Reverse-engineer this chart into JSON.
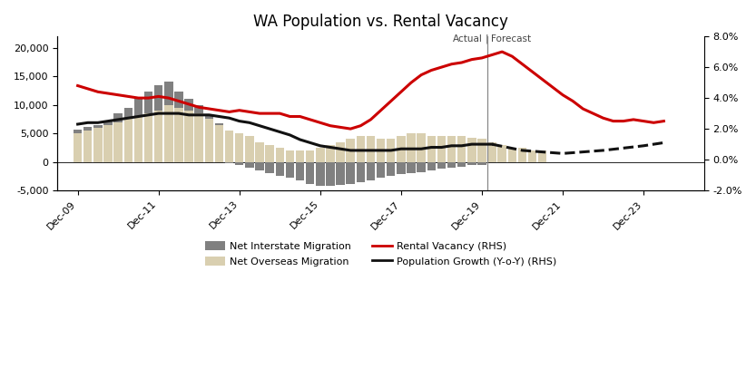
{
  "title": "WA Population vs. Rental Vacancy",
  "x_tick_labels": [
    "Dec-09",
    "Dec-11",
    "Dec-13",
    "Dec-15",
    "Dec-17",
    "Dec-19",
    "Dec-21",
    "Dec-23"
  ],
  "x_tick_positions": [
    0,
    8,
    16,
    24,
    32,
    40,
    48,
    56
  ],
  "xlim": [
    -2,
    62
  ],
  "ylim_left": [
    -5000,
    22000
  ],
  "ylim_right": [
    -0.02,
    0.08
  ],
  "forecast_line_x": 40.5,
  "bar_width": 0.85,
  "interstate_color": "#808080",
  "overseas_color": "#d9cfb0",
  "rental_color": "#cc0000",
  "pop_growth_color": "#111111",
  "net_interstate_y": [
    700,
    600,
    500,
    800,
    1500,
    2000,
    3200,
    3800,
    4500,
    4000,
    2800,
    2000,
    1500,
    800,
    200,
    -200,
    -500,
    -1000,
    -1500,
    -2000,
    -2500,
    -2800,
    -3200,
    -3800,
    -4200,
    -4200,
    -4000,
    -3800,
    -3500,
    -3200,
    -2800,
    -2500,
    -2200,
    -2000,
    -1800,
    -1500,
    -1200,
    -1000,
    -800,
    -600,
    -500,
    0,
    0,
    0,
    0,
    0,
    0,
    0,
    0,
    0,
    0,
    0,
    0,
    0,
    0,
    0,
    0,
    0,
    0
  ],
  "net_overseas_y": [
    5000,
    5500,
    6000,
    6500,
    7000,
    7500,
    8000,
    8500,
    9000,
    10000,
    9500,
    9000,
    8500,
    7500,
    6500,
    5500,
    5000,
    4500,
    3500,
    3000,
    2500,
    2000,
    2000,
    2000,
    2500,
    3000,
    3500,
    4000,
    4500,
    4500,
    4000,
    4000,
    4500,
    5000,
    5000,
    4500,
    4500,
    4500,
    4500,
    4200,
    4000,
    3500,
    3000,
    2500,
    2500,
    2000,
    2000,
    0,
    0,
    0,
    0,
    0,
    0,
    0,
    0,
    0,
    0,
    0,
    0
  ],
  "rental_vacancy_x": [
    0,
    1,
    2,
    3,
    4,
    5,
    6,
    7,
    8,
    9,
    10,
    11,
    12,
    13,
    14,
    15,
    16,
    17,
    18,
    19,
    20,
    21,
    22,
    23,
    24,
    25,
    26,
    27,
    28,
    29,
    30,
    31,
    32,
    33,
    34,
    35,
    36,
    37,
    38,
    39,
    40,
    41,
    42,
    43,
    44,
    45,
    46,
    47,
    48,
    49,
    50,
    51,
    52,
    53,
    54,
    55,
    56,
    57,
    58
  ],
  "rental_vacancy_y": [
    0.048,
    0.046,
    0.044,
    0.043,
    0.042,
    0.041,
    0.04,
    0.04,
    0.041,
    0.04,
    0.038,
    0.036,
    0.034,
    0.033,
    0.032,
    0.031,
    0.032,
    0.031,
    0.03,
    0.03,
    0.03,
    0.028,
    0.028,
    0.026,
    0.024,
    0.022,
    0.021,
    0.02,
    0.022,
    0.026,
    0.032,
    0.038,
    0.044,
    0.05,
    0.055,
    0.058,
    0.06,
    0.062,
    0.063,
    0.065,
    0.066,
    0.068,
    0.07,
    0.067,
    0.062,
    0.057,
    0.052,
    0.047,
    0.042,
    0.038,
    0.033,
    0.03,
    0.027,
    0.025,
    0.025,
    0.026,
    0.025,
    0.024,
    0.025
  ],
  "pop_growth_actual_x": [
    0,
    1,
    2,
    3,
    4,
    5,
    6,
    7,
    8,
    9,
    10,
    11,
    12,
    13,
    14,
    15,
    16,
    17,
    18,
    19,
    20,
    21,
    22,
    23,
    24,
    25,
    26,
    27,
    28,
    29,
    30,
    31,
    32,
    33,
    34,
    35,
    36,
    37,
    38,
    39,
    40,
    41
  ],
  "pop_growth_actual_y": [
    0.023,
    0.024,
    0.024,
    0.025,
    0.026,
    0.027,
    0.028,
    0.029,
    0.03,
    0.03,
    0.03,
    0.029,
    0.029,
    0.029,
    0.028,
    0.027,
    0.025,
    0.024,
    0.022,
    0.02,
    0.018,
    0.016,
    0.013,
    0.011,
    0.009,
    0.008,
    0.007,
    0.006,
    0.006,
    0.006,
    0.006,
    0.006,
    0.007,
    0.007,
    0.007,
    0.008,
    0.008,
    0.009,
    0.009,
    0.01,
    0.01,
    0.01
  ],
  "pop_growth_forecast_x": [
    41,
    44,
    48,
    52,
    56,
    58
  ],
  "pop_growth_forecast_y": [
    0.01,
    0.006,
    0.004,
    0.006,
    0.009,
    0.011
  ]
}
